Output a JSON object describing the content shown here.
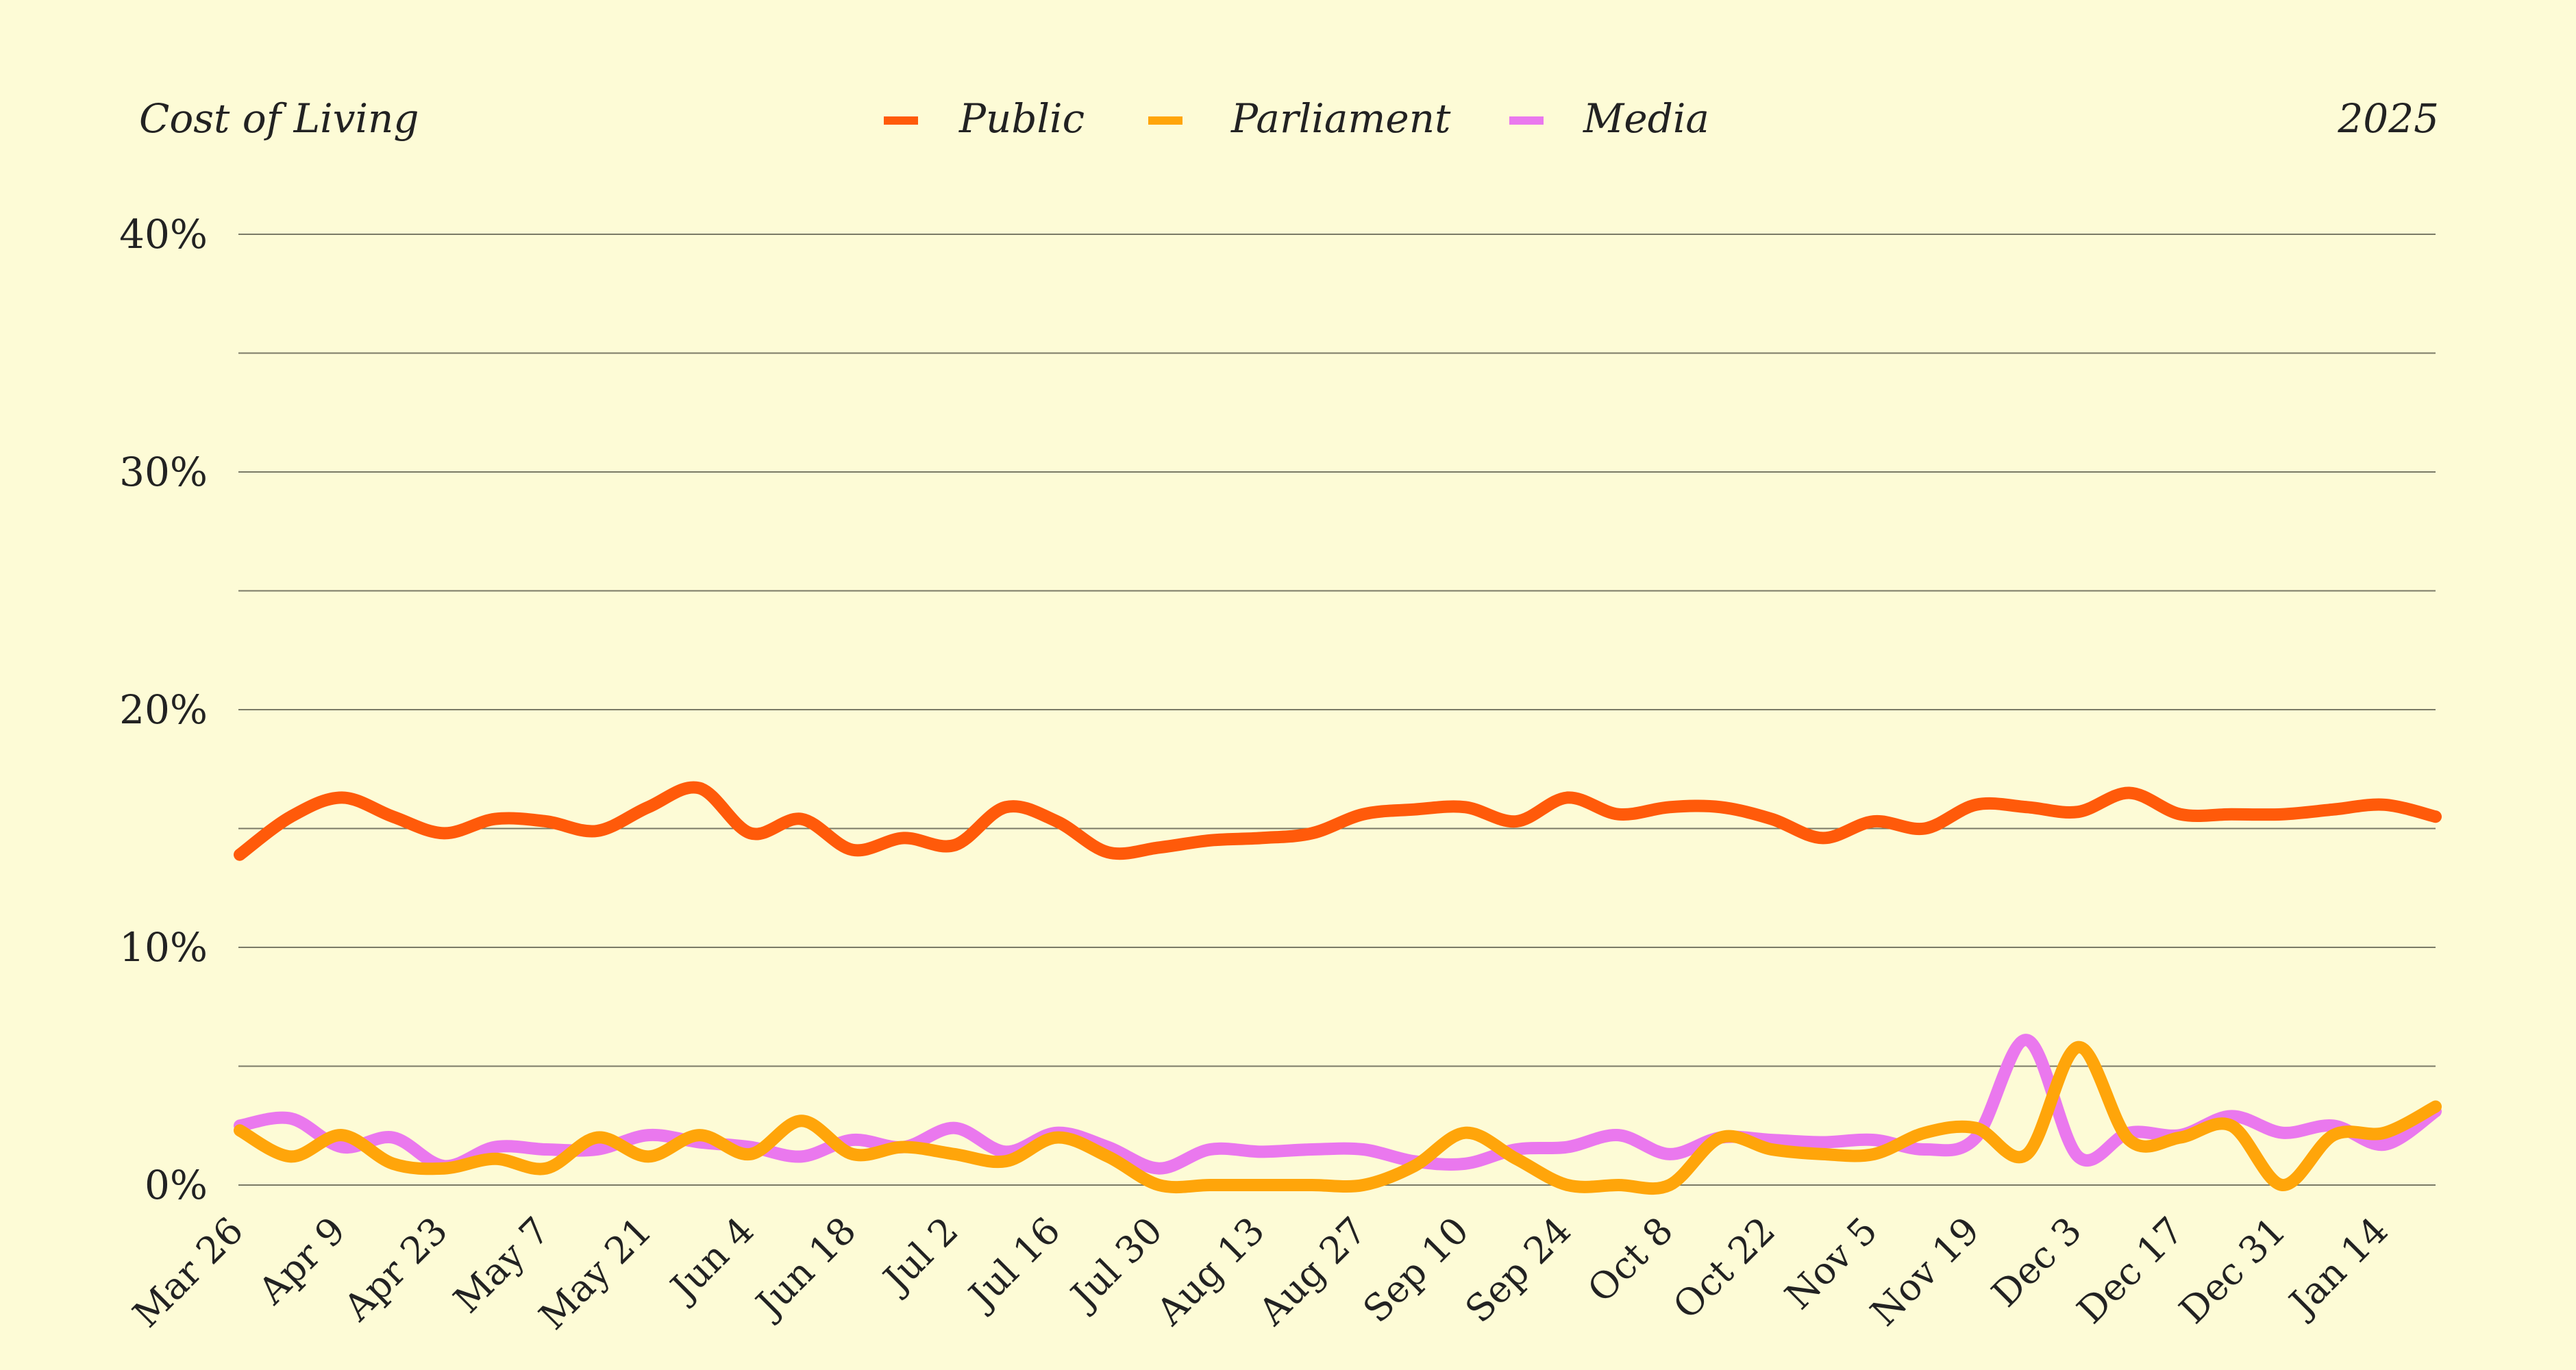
{
  "chart_data": {
    "type": "line",
    "title": "Cost of Living",
    "year_label": "2025",
    "y_ticks": [
      "0%",
      "10%",
      "20%",
      "30%",
      "40%"
    ],
    "ylim": [
      0,
      40
    ],
    "ygrid_step": 5,
    "grid": true,
    "legend_position": "top-center",
    "x_tick_labels": [
      "Mar 26",
      "Apr 9",
      "Apr 23",
      "May 7",
      "May 21",
      "Jun 4",
      "Jun 18",
      "Jul 2",
      "Jul 16",
      "Jul 30",
      "Aug 13",
      "Aug 27",
      "Sep 10",
      "Sep 24",
      "Oct 8",
      "Oct 22",
      "Nov 5",
      "Nov 19",
      "Dec 3",
      "Dec 17",
      "Dec 31",
      "Jan 14"
    ],
    "x": [
      "Mar 26",
      "Apr 2",
      "Apr 9",
      "Apr 16",
      "Apr 23",
      "Apr 30",
      "May 7",
      "May 14",
      "May 21",
      "May 28",
      "Jun 4",
      "Jun 11",
      "Jun 18",
      "Jun 25",
      "Jul 2",
      "Jul 9",
      "Jul 16",
      "Jul 23",
      "Jul 30",
      "Aug 6",
      "Aug 13",
      "Aug 20",
      "Aug 27",
      "Sep 3",
      "Sep 10",
      "Sep 17",
      "Sep 24",
      "Oct 1",
      "Oct 8",
      "Oct 15",
      "Oct 22",
      "Oct 29",
      "Nov 5",
      "Nov 12",
      "Nov 19",
      "Nov 26",
      "Dec 3",
      "Dec 10",
      "Dec 17",
      "Dec 24",
      "Dec 31",
      "Jan 7",
      "Jan 14",
      "Jan 21"
    ],
    "series": [
      {
        "name": "Public",
        "color": "#ff5a0a",
        "values": [
          13.9,
          15.5,
          16.3,
          15.5,
          14.8,
          15.4,
          15.3,
          14.9,
          15.9,
          16.7,
          14.8,
          15.4,
          14.1,
          14.6,
          14.3,
          15.9,
          15.3,
          14.0,
          14.2,
          14.5,
          14.6,
          14.8,
          15.6,
          15.8,
          15.9,
          15.3,
          16.3,
          15.6,
          15.9,
          15.9,
          15.4,
          14.6,
          15.3,
          15.0,
          16.0,
          15.9,
          15.7,
          16.5,
          15.6,
          15.6,
          15.6,
          15.8,
          16.0,
          15.5
        ]
      },
      {
        "name": "Parliament",
        "color": "#ffa50a",
        "values": [
          2.3,
          1.2,
          2.1,
          0.9,
          0.7,
          1.1,
          0.7,
          2.0,
          1.2,
          2.1,
          1.3,
          2.7,
          1.3,
          1.6,
          1.3,
          1.0,
          2.0,
          1.2,
          0.0,
          0.0,
          0.0,
          0.0,
          0.0,
          0.8,
          2.2,
          1.1,
          0.0,
          0.0,
          0.0,
          2.0,
          1.5,
          1.3,
          1.3,
          2.2,
          2.4,
          1.3,
          5.8,
          1.9,
          2.0,
          2.5,
          0.0,
          2.1,
          2.2,
          3.3
        ]
      },
      {
        "name": "Media",
        "color": "#ea78ee",
        "values": [
          2.5,
          2.8,
          1.6,
          2.0,
          0.8,
          1.6,
          1.5,
          1.5,
          2.1,
          1.8,
          1.6,
          1.2,
          1.9,
          1.6,
          2.4,
          1.4,
          2.2,
          1.6,
          0.7,
          1.5,
          1.4,
          1.5,
          1.5,
          1.0,
          0.9,
          1.5,
          1.6,
          2.1,
          1.3,
          2.0,
          1.9,
          1.8,
          1.9,
          1.5,
          2.0,
          6.1,
          1.2,
          2.2,
          2.1,
          2.9,
          2.2,
          2.5,
          1.7,
          3.1
        ]
      }
    ]
  },
  "colors": {
    "background": "#fdfbd6",
    "grid": "#7a7a66",
    "text": "#222222"
  }
}
